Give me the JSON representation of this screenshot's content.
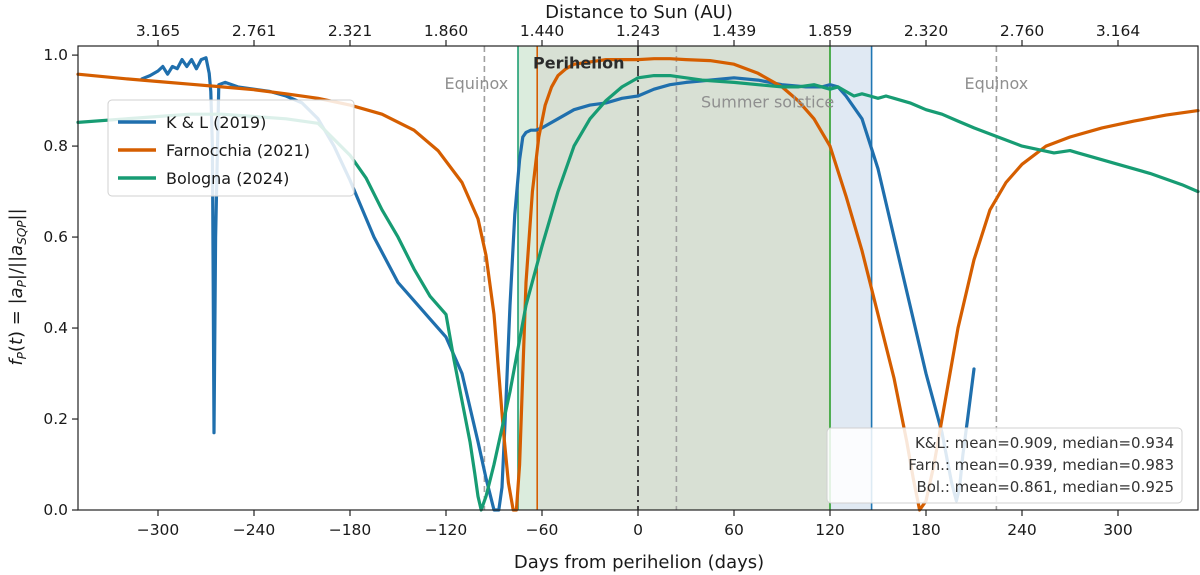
{
  "chart_data": {
    "type": "line",
    "xlabel": "Days from perihelion (days)",
    "ylabel": "f_P(t) = |a_P|/||a_SQP||",
    "top_axis_label": "Distance to Sun (AU)",
    "xlim": [
      -350,
      350
    ],
    "ylim": [
      0.0,
      1.02
    ],
    "x_ticks": [
      -300,
      -240,
      -180,
      -120,
      -60,
      0,
      60,
      120,
      180,
      240,
      300
    ],
    "x_tick_labels": [
      "−300",
      "−240",
      "−180",
      "−120",
      "−60",
      "0",
      "60",
      "120",
      "180",
      "240",
      "300"
    ],
    "y_ticks": [
      0.0,
      0.2,
      0.4,
      0.6,
      0.8,
      1.0
    ],
    "y_tick_labels": [
      "0.0",
      "0.2",
      "0.4",
      "0.6",
      "0.8",
      "1.0"
    ],
    "top_ticks": [
      {
        "x": -300,
        "label": "3.165"
      },
      {
        "x": -240,
        "label": "2.761"
      },
      {
        "x": -180,
        "label": "2.321"
      },
      {
        "x": -120,
        "label": "1.860"
      },
      {
        "x": -60,
        "label": "1.440"
      },
      {
        "x": 0,
        "label": "1.243"
      },
      {
        "x": 60,
        "label": "1.439"
      },
      {
        "x": 120,
        "label": "1.859"
      },
      {
        "x": 180,
        "label": "2.320"
      },
      {
        "x": 240,
        "label": "2.760"
      },
      {
        "x": 300,
        "label": "3.164"
      }
    ],
    "shaded_regions": [
      {
        "x0": -63,
        "x1": 120,
        "color": "#c8d3c2",
        "opacity": 0.7
      },
      {
        "x0": -75,
        "x1": -63,
        "color": "#d7ead9",
        "opacity": 0.9
      },
      {
        "x0": 120,
        "x1": 146,
        "color": "#dde7f2",
        "opacity": 0.9
      }
    ],
    "vertical_lines": [
      {
        "x": -96,
        "color": "#a0a0a0",
        "style": "dashed"
      },
      {
        "x": 24,
        "color": "#a0a0a0",
        "style": "dashed"
      },
      {
        "x": 224,
        "color": "#a0a0a0",
        "style": "dashed"
      },
      {
        "x": 0,
        "color": "#444444",
        "style": "dashdot"
      },
      {
        "x": -75,
        "color": "#1f9e73",
        "style": "solid"
      },
      {
        "x": -63,
        "color": "#d55e00",
        "style": "solid"
      },
      {
        "x": 120,
        "color": "#2ca02c",
        "style": "solid"
      },
      {
        "x": 146,
        "color": "#1f77b4",
        "style": "solid"
      }
    ],
    "annotations": [
      {
        "text": "Equinox",
        "x": -101,
        "y": 0.925,
        "style": "gray"
      },
      {
        "text": "Perihelion",
        "x": -37,
        "y": 0.97,
        "style": "bold"
      },
      {
        "text": "Summer solstice",
        "x": 81,
        "y": 0.885,
        "style": "gray"
      },
      {
        "text": "Equinox",
        "x": 224,
        "y": 0.925,
        "style": "gray"
      }
    ],
    "series": [
      {
        "name": "K & L (2019)",
        "color": "#1f6fad",
        "x": [
          -310,
          -305,
          -300,
          -297,
          -294,
          -291,
          -288,
          -285,
          -282,
          -279,
          -276,
          -273,
          -270,
          -268,
          -267,
          -266,
          -265.5,
          -265,
          -264,
          -262,
          -258,
          -250,
          -240,
          -230,
          -220,
          -210,
          -200,
          -190,
          -180,
          -165,
          -150,
          -140,
          -130,
          -120,
          -110,
          -100,
          -95,
          -90,
          -87,
          -85,
          -83,
          -80,
          -77,
          -74,
          -72,
          -70,
          -67,
          -64,
          -60,
          -50,
          -40,
          -30,
          -20,
          -10,
          0,
          10,
          20,
          30,
          45,
          60,
          75,
          90,
          105,
          115,
          120,
          125,
          130,
          140,
          150,
          160,
          170,
          180,
          190,
          196,
          199,
          201,
          203,
          206,
          210
        ],
        "y": [
          0.948,
          0.955,
          0.965,
          0.975,
          0.958,
          0.975,
          0.97,
          0.99,
          0.975,
          0.99,
          0.97,
          0.99,
          0.994,
          0.96,
          0.92,
          0.8,
          0.5,
          0.17,
          0.6,
          0.935,
          0.94,
          0.93,
          0.925,
          0.92,
          0.91,
          0.895,
          0.86,
          0.8,
          0.725,
          0.6,
          0.5,
          0.46,
          0.42,
          0.38,
          0.3,
          0.15,
          0.07,
          0.0,
          0.0,
          0.05,
          0.2,
          0.45,
          0.65,
          0.77,
          0.82,
          0.83,
          0.835,
          0.835,
          0.84,
          0.86,
          0.88,
          0.89,
          0.895,
          0.905,
          0.91,
          0.925,
          0.935,
          0.94,
          0.945,
          0.95,
          0.945,
          0.935,
          0.93,
          0.93,
          0.935,
          0.93,
          0.91,
          0.86,
          0.75,
          0.6,
          0.45,
          0.3,
          0.17,
          0.06,
          0.02,
          0.05,
          0.12,
          0.2,
          0.31
        ]
      },
      {
        "name": "Farnocchia (2021)",
        "color": "#d55e00",
        "x": [
          -350,
          -320,
          -300,
          -280,
          -260,
          -240,
          -220,
          -200,
          -180,
          -160,
          -140,
          -125,
          -110,
          -100,
          -95,
          -90,
          -87,
          -84,
          -81,
          -78,
          -76,
          -74,
          -72,
          -70,
          -66,
          -62,
          -58,
          -54,
          -50,
          -45,
          -40,
          -30,
          -20,
          -10,
          0,
          10,
          20,
          30,
          45,
          60,
          75,
          90,
          100,
          110,
          120,
          130,
          140,
          150,
          160,
          168,
          172,
          176,
          180,
          185,
          190,
          200,
          210,
          220,
          230,
          240,
          255,
          270,
          290,
          310,
          330,
          350
        ],
        "y": [
          0.958,
          0.948,
          0.942,
          0.936,
          0.93,
          0.924,
          0.915,
          0.905,
          0.89,
          0.87,
          0.835,
          0.79,
          0.72,
          0.64,
          0.56,
          0.43,
          0.3,
          0.17,
          0.06,
          0.0,
          0.0,
          0.1,
          0.3,
          0.5,
          0.7,
          0.82,
          0.89,
          0.93,
          0.955,
          0.97,
          0.98,
          0.985,
          0.99,
          0.99,
          0.99,
          0.992,
          0.992,
          0.99,
          0.988,
          0.98,
          0.96,
          0.93,
          0.9,
          0.86,
          0.8,
          0.69,
          0.57,
          0.43,
          0.29,
          0.15,
          0.07,
          0.0,
          0.02,
          0.1,
          0.2,
          0.4,
          0.55,
          0.66,
          0.72,
          0.76,
          0.8,
          0.82,
          0.84,
          0.855,
          0.868,
          0.878
        ]
      },
      {
        "name": "Bologna (2024)",
        "color": "#179c73",
        "x": [
          -350,
          -320,
          -300,
          -280,
          -260,
          -240,
          -220,
          -200,
          -180,
          -170,
          -160,
          -150,
          -140,
          -130,
          -125,
          -120,
          -115,
          -110,
          -105,
          -102,
          -100,
          -98,
          -95,
          -90,
          -80,
          -70,
          -60,
          -50,
          -40,
          -30,
          -20,
          -10,
          0,
          10,
          20,
          30,
          40,
          60,
          75,
          90,
          100,
          110,
          115,
          120,
          125,
          130,
          135,
          140,
          145,
          150,
          155,
          160,
          170,
          180,
          190,
          200,
          210,
          225,
          240,
          260,
          270,
          275,
          280,
          300,
          320,
          340,
          350
        ],
        "y": [
          0.852,
          0.86,
          0.865,
          0.87,
          0.87,
          0.865,
          0.86,
          0.85,
          0.78,
          0.73,
          0.66,
          0.6,
          0.53,
          0.47,
          0.45,
          0.43,
          0.33,
          0.24,
          0.15,
          0.08,
          0.03,
          0.0,
          0.03,
          0.1,
          0.26,
          0.45,
          0.58,
          0.7,
          0.8,
          0.86,
          0.9,
          0.93,
          0.95,
          0.955,
          0.955,
          0.95,
          0.945,
          0.94,
          0.935,
          0.93,
          0.93,
          0.935,
          0.93,
          0.925,
          0.93,
          0.92,
          0.91,
          0.915,
          0.91,
          0.905,
          0.91,
          0.905,
          0.895,
          0.88,
          0.87,
          0.855,
          0.84,
          0.82,
          0.8,
          0.785,
          0.79,
          0.785,
          0.78,
          0.76,
          0.74,
          0.715,
          0.7
        ]
      }
    ],
    "legend": {
      "position": "upper-left",
      "entries": [
        "K & L (2019)",
        "Farnocchia (2021)",
        "Bologna (2024)"
      ]
    },
    "stats_box": {
      "position": "lower-right",
      "lines": [
        "K&L: mean=0.909, median=0.934",
        "Farn.: mean=0.939, median=0.983",
        "Bol.: mean=0.861, median=0.925"
      ]
    }
  }
}
